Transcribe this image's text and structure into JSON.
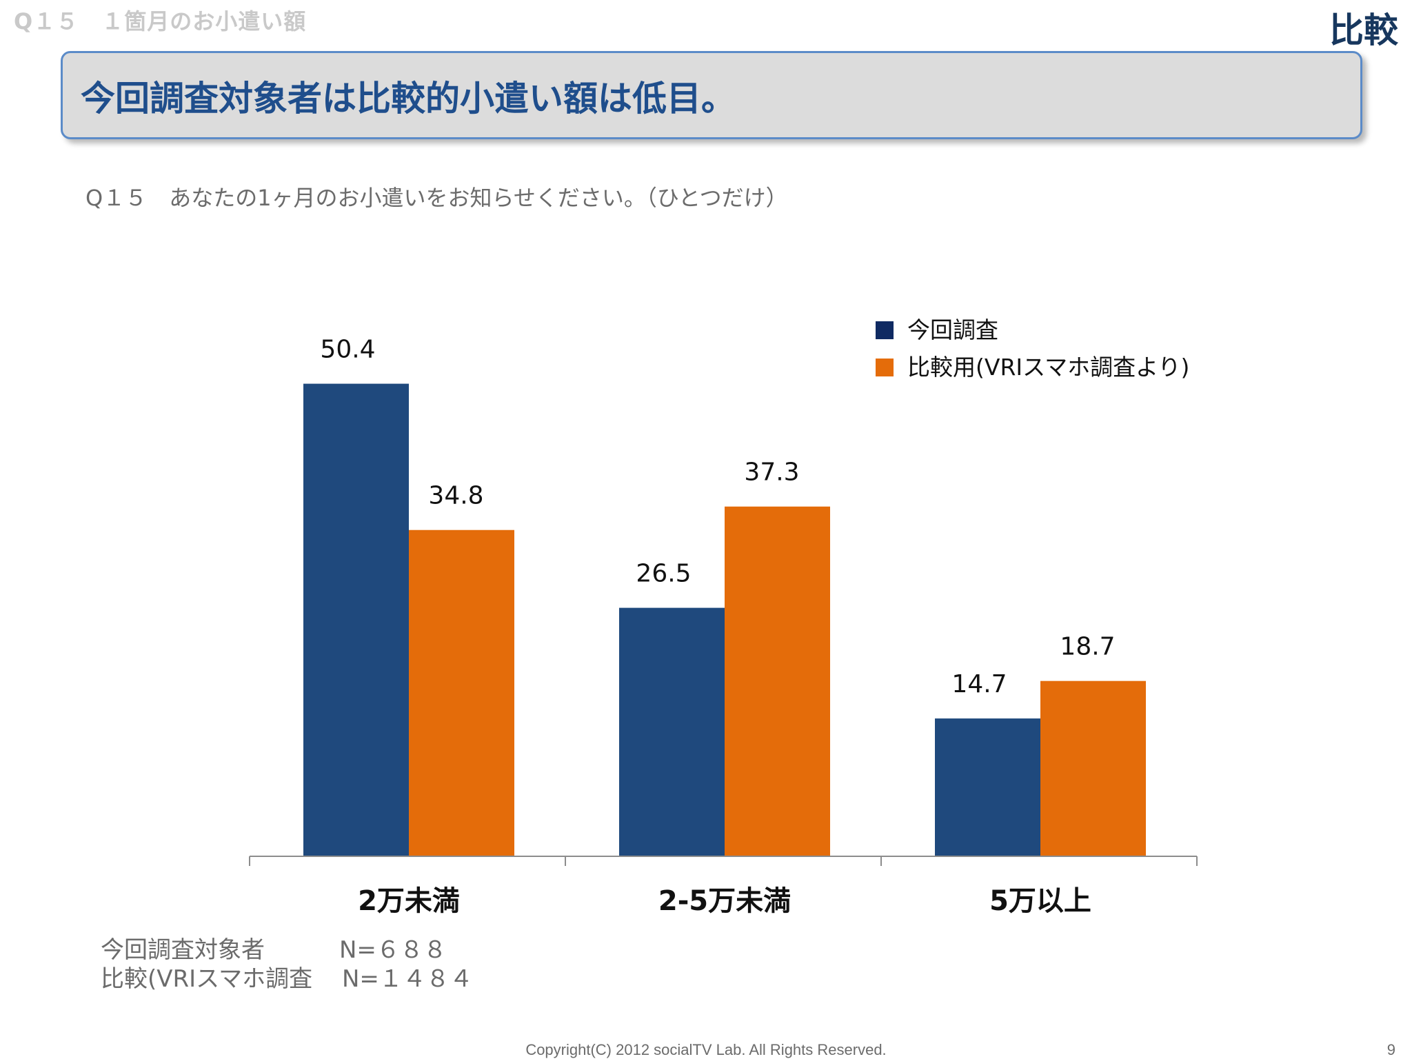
{
  "header": {
    "slide_label": "Q１５　１箇月のお小遣い額",
    "tag": "比較"
  },
  "headline": "今回調査対象者は比較的小遣い額は低目。",
  "question": "Q１５　あなたの1ヶ月のお小遣いをお知らせください。（ひとつだけ）",
  "sample_sizes": [
    {
      "label": "今回調査対象者",
      "n": "N=６８８"
    },
    {
      "label": "比較(VRIスマホ調査",
      "n": "N=１４８４"
    }
  ],
  "footer": {
    "copyright": "Copyright(C) 2012 socialTV Lab. All Rights Reserved.",
    "page": "9"
  },
  "colors": {
    "series1": "#1f497d",
    "series2": "#e46c0a",
    "legend1": "#0f2a62",
    "axis": "#8c8c8c"
  },
  "chart_data": {
    "type": "bar",
    "categories": [
      "2万未満",
      "2-5万未満",
      "5万以上"
    ],
    "series": [
      {
        "name": "今回調査",
        "values": [
          50.4,
          26.5,
          14.7
        ]
      },
      {
        "name": "比較用(VRIスマホ調査より)",
        "values": [
          34.8,
          37.3,
          18.7
        ]
      }
    ],
    "value_labels": [
      [
        "50.4",
        "26.5",
        "14.7"
      ],
      [
        "34.8",
        "37.3",
        "18.7"
      ]
    ],
    "ylim": [
      0,
      60
    ],
    "grid": false,
    "legend_position": "top-right"
  }
}
